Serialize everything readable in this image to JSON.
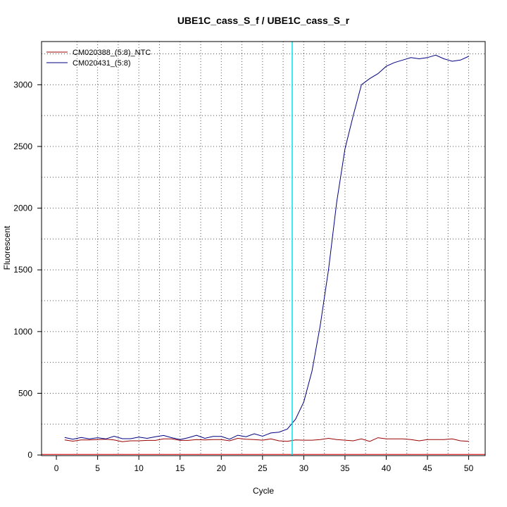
{
  "chart_data": {
    "type": "line",
    "title": "UBE1C_cass_S_f / UBE1C_cass_S_r",
    "xlabel": "Cycle",
    "ylabel": "Fluorescent",
    "xlim": [
      -1.8,
      52.0
    ],
    "ylim": [
      -5,
      3350
    ],
    "xticks": [
      0,
      5,
      10,
      15,
      20,
      25,
      30,
      35,
      40,
      45,
      50
    ],
    "yticks": [
      0,
      500,
      1000,
      1500,
      2000,
      2500,
      3000
    ],
    "grid": true,
    "legend_position": "top-left",
    "threshold_cycle": 28.6,
    "threshold_fluorescence": 5,
    "series": [
      {
        "name": "CM020388_(5:8)_NTC",
        "color": "#990000",
        "x": [
          1,
          2,
          3,
          4,
          5,
          6,
          7,
          8,
          9,
          10,
          11,
          12,
          13,
          14,
          15,
          16,
          17,
          18,
          19,
          20,
          21,
          22,
          23,
          24,
          25,
          26,
          27,
          28,
          29,
          30,
          31,
          32,
          33,
          34,
          35,
          36,
          37,
          38,
          39,
          40,
          41,
          42,
          43,
          44,
          45,
          46,
          47,
          48,
          49,
          50
        ],
        "values": [
          122,
          112,
          122,
          122,
          125,
          128,
          122,
          108,
          115,
          115,
          118,
          118,
          130,
          130,
          118,
          118,
          125,
          122,
          125,
          125,
          115,
          135,
          128,
          125,
          120,
          130,
          115,
          110,
          122,
          120,
          120,
          125,
          135,
          125,
          120,
          115,
          130,
          110,
          140,
          130,
          130,
          130,
          125,
          115,
          125,
          125,
          125,
          130,
          115,
          110
        ]
      },
      {
        "name": "CM020431_(5:8)",
        "color": "#000080",
        "x": [
          1,
          2,
          3,
          4,
          5,
          6,
          7,
          8,
          9,
          10,
          11,
          12,
          13,
          14,
          15,
          16,
          17,
          18,
          19,
          20,
          21,
          22,
          23,
          24,
          25,
          26,
          27,
          28,
          29,
          30,
          31,
          32,
          33,
          34,
          35,
          36,
          37,
          38,
          39,
          40,
          41,
          42,
          43,
          44,
          45,
          46,
          47,
          48,
          49,
          50
        ],
        "values": [
          142,
          128,
          142,
          130,
          140,
          130,
          152,
          132,
          132,
          145,
          135,
          148,
          158,
          140,
          125,
          140,
          160,
          135,
          150,
          150,
          128,
          160,
          148,
          172,
          152,
          178,
          185,
          210,
          290,
          430,
          680,
          1050,
          1500,
          2050,
          2480,
          2750,
          3000,
          3050,
          3090,
          3150,
          3180,
          3200,
          3220,
          3210,
          3220,
          3240,
          3210,
          3190,
          3200,
          3230
        ]
      }
    ]
  }
}
